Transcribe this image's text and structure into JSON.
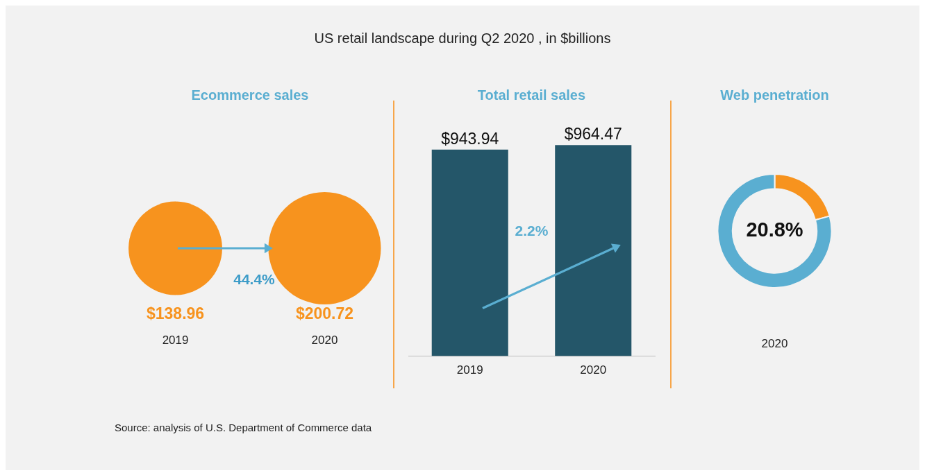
{
  "chart_data": [
    {
      "type": "other",
      "title": "US retail landscape during Q2 2020 , in $billions",
      "subtitle": "Ecommerce sales",
      "categories": [
        "2019",
        "2020"
      ],
      "values": [
        138.96,
        200.72
      ],
      "value_labels": [
        "$138.96",
        "$200.72"
      ],
      "color": "#f7931e",
      "annotations": [
        "44.4%",
        "Source: analysis of U.S. Department of Commerce data"
      ]
    },
    {
      "type": "bar",
      "title": "Total retail sales",
      "categories": [
        "2019",
        "2020"
      ],
      "values": [
        943.94,
        964.47
      ],
      "value_labels": [
        "$943.94",
        "$964.47"
      ],
      "color": "#245669",
      "annotations": [
        "2.2%"
      ]
    },
    {
      "type": "donut",
      "title": "Web penetration",
      "categories": [
        null,
        null
      ],
      "values": [
        20.8,
        79.2
      ],
      "colors": [
        "#f7931e",
        "#5aaed1"
      ],
      "xlabel": "2020",
      "annotations": [
        "20.8%"
      ]
    }
  ]
}
